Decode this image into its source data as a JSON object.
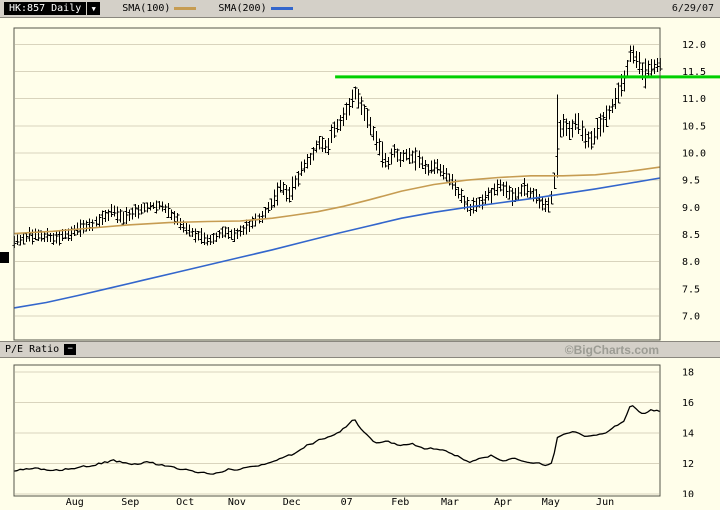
{
  "header": {
    "symbol": "HK:857 Daily",
    "dropdown_icon": "▼",
    "legend": [
      {
        "label": "SMA(100)",
        "color": "#c69c52"
      },
      {
        "label": "SMA(200)",
        "color": "#3366cc"
      }
    ],
    "date": "6/29/07"
  },
  "pe_bar": {
    "label": "P/E Ratio",
    "collapse_icon": "−",
    "watermark": "©BigCharts.com"
  },
  "colors": {
    "toolbar_bg": "#d4d0c8",
    "chart_bg": "#fffeea",
    "grid": "#d9d4bd",
    "border": "#55554a",
    "candle": "#000000",
    "sma100": "#c69c52",
    "sma200": "#3366cc",
    "signal": "#00d000",
    "axis_text": "#000000",
    "watermark": "#9c9c94"
  },
  "chart_data": [
    {
      "type": "ohlc",
      "title": "HK:857 Daily price with SMA(100), SMA(200) and horizontal signal line",
      "ylim": [
        7.0,
        12.0
      ],
      "yticks": [
        "12.0",
        "11.5",
        "11.0",
        "10.5",
        "10.0",
        "9.5",
        "9.0",
        "8.5",
        "8.0",
        "7.5",
        "7.0"
      ],
      "x_axis_months": [
        "Aug",
        "Sep",
        "Oct",
        "Nov",
        "Dec",
        "07",
        "Feb",
        "Mar",
        "Apr",
        "May",
        "Jun"
      ],
      "month_t": [
        0.094,
        0.18,
        0.265,
        0.345,
        0.43,
        0.515,
        0.598,
        0.675,
        0.757,
        0.831,
        0.915
      ],
      "legend_position": "top",
      "grid": true,
      "price_anchors": [
        [
          0.0,
          8.25,
          8.5
        ],
        [
          0.03,
          8.38,
          8.62
        ],
        [
          0.06,
          8.3,
          8.58
        ],
        [
          0.094,
          8.42,
          8.68
        ],
        [
          0.12,
          8.55,
          8.82
        ],
        [
          0.155,
          8.82,
          9.05
        ],
        [
          0.17,
          8.65,
          8.92
        ],
        [
          0.18,
          8.75,
          9.0
        ],
        [
          0.205,
          8.9,
          9.12
        ],
        [
          0.225,
          8.95,
          9.15
        ],
        [
          0.25,
          8.65,
          8.95
        ],
        [
          0.265,
          8.48,
          8.75
        ],
        [
          0.285,
          8.35,
          8.6
        ],
        [
          0.305,
          8.25,
          8.5
        ],
        [
          0.325,
          8.45,
          8.68
        ],
        [
          0.34,
          8.35,
          8.58
        ],
        [
          0.355,
          8.45,
          8.7
        ],
        [
          0.37,
          8.6,
          8.85
        ],
        [
          0.385,
          8.75,
          9.0
        ],
        [
          0.4,
          8.95,
          9.22
        ],
        [
          0.413,
          9.25,
          9.58
        ],
        [
          0.425,
          9.05,
          9.35
        ],
        [
          0.432,
          9.25,
          9.55
        ],
        [
          0.445,
          9.55,
          9.85
        ],
        [
          0.458,
          9.75,
          10.05
        ],
        [
          0.472,
          10.05,
          10.38
        ],
        [
          0.483,
          9.95,
          10.25
        ],
        [
          0.495,
          10.25,
          10.6
        ],
        [
          0.508,
          10.45,
          10.8
        ],
        [
          0.518,
          10.65,
          11.0
        ],
        [
          0.527,
          10.95,
          11.28
        ],
        [
          0.537,
          10.7,
          11.05
        ],
        [
          0.548,
          10.4,
          10.78
        ],
        [
          0.558,
          10.1,
          10.5
        ],
        [
          0.568,
          9.85,
          10.22
        ],
        [
          0.578,
          9.62,
          9.95
        ],
        [
          0.588,
          9.9,
          10.22
        ],
        [
          0.598,
          9.78,
          10.05
        ],
        [
          0.612,
          9.85,
          10.12
        ],
        [
          0.627,
          9.7,
          9.98
        ],
        [
          0.641,
          9.55,
          9.85
        ],
        [
          0.655,
          9.62,
          9.9
        ],
        [
          0.675,
          9.35,
          9.65
        ],
        [
          0.69,
          9.05,
          9.38
        ],
        [
          0.705,
          8.8,
          9.12
        ],
        [
          0.72,
          8.95,
          9.25
        ],
        [
          0.737,
          9.1,
          9.4
        ],
        [
          0.75,
          9.28,
          9.55
        ],
        [
          0.76,
          9.15,
          9.45
        ],
        [
          0.775,
          9.05,
          9.35
        ],
        [
          0.788,
          9.2,
          9.5
        ],
        [
          0.802,
          9.1,
          9.4
        ],
        [
          0.815,
          8.95,
          9.25
        ],
        [
          0.825,
          8.85,
          9.15
        ],
        [
          0.833,
          9.05,
          9.4
        ],
        [
          0.837,
          9.3,
          9.7
        ],
        [
          0.845,
          10.2,
          10.6
        ],
        [
          0.85,
          10.3,
          10.7
        ],
        [
          0.861,
          10.2,
          10.6
        ],
        [
          0.872,
          10.4,
          10.8
        ],
        [
          0.882,
          10.1,
          10.5
        ],
        [
          0.892,
          10.0,
          10.4
        ],
        [
          0.903,
          10.25,
          10.65
        ],
        [
          0.915,
          10.4,
          10.8
        ],
        [
          0.93,
          10.8,
          11.2
        ],
        [
          0.944,
          11.1,
          11.5
        ],
        [
          0.955,
          11.7,
          12.1
        ],
        [
          0.965,
          11.5,
          11.9
        ],
        [
          0.975,
          11.25,
          11.65
        ],
        [
          0.986,
          11.4,
          11.78
        ],
        [
          1.0,
          11.45,
          11.8
        ]
      ],
      "spike_bars": [
        {
          "t": 0.841,
          "low": 9.55,
          "high": 11.08
        }
      ],
      "sma100": [
        [
          0.0,
          8.52
        ],
        [
          0.06,
          8.56
        ],
        [
          0.12,
          8.62
        ],
        [
          0.18,
          8.68
        ],
        [
          0.24,
          8.72
        ],
        [
          0.3,
          8.74
        ],
        [
          0.35,
          8.75
        ],
        [
          0.4,
          8.8
        ],
        [
          0.43,
          8.85
        ],
        [
          0.47,
          8.92
        ],
        [
          0.51,
          9.02
        ],
        [
          0.55,
          9.14
        ],
        [
          0.6,
          9.3
        ],
        [
          0.65,
          9.42
        ],
        [
          0.7,
          9.5
        ],
        [
          0.75,
          9.55
        ],
        [
          0.8,
          9.58
        ],
        [
          0.85,
          9.58
        ],
        [
          0.9,
          9.6
        ],
        [
          0.95,
          9.66
        ],
        [
          1.0,
          9.74
        ]
      ],
      "sma200": [
        [
          0.0,
          7.15
        ],
        [
          0.05,
          7.25
        ],
        [
          0.1,
          7.38
        ],
        [
          0.15,
          7.52
        ],
        [
          0.2,
          7.66
        ],
        [
          0.25,
          7.8
        ],
        [
          0.3,
          7.94
        ],
        [
          0.35,
          8.08
        ],
        [
          0.4,
          8.22
        ],
        [
          0.45,
          8.37
        ],
        [
          0.5,
          8.52
        ],
        [
          0.55,
          8.66
        ],
        [
          0.6,
          8.8
        ],
        [
          0.65,
          8.91
        ],
        [
          0.7,
          9.0
        ],
        [
          0.75,
          9.08
        ],
        [
          0.8,
          9.16
        ],
        [
          0.85,
          9.25
        ],
        [
          0.9,
          9.34
        ],
        [
          0.95,
          9.44
        ],
        [
          1.0,
          9.54
        ]
      ],
      "resistance_line": {
        "value": 11.4,
        "start_t": 0.497,
        "color": "#00d000"
      }
    },
    {
      "type": "line",
      "title": "P/E Ratio",
      "ylim": [
        10,
        18
      ],
      "yticks": [
        "18",
        "16",
        "14",
        "12",
        "10"
      ],
      "grid": true,
      "points": [
        [
          0.0,
          11.5
        ],
        [
          0.03,
          11.7
        ],
        [
          0.055,
          11.5
        ],
        [
          0.094,
          11.7
        ],
        [
          0.125,
          11.9
        ],
        [
          0.155,
          12.2
        ],
        [
          0.18,
          11.9
        ],
        [
          0.205,
          12.1
        ],
        [
          0.23,
          11.9
        ],
        [
          0.25,
          11.7
        ],
        [
          0.265,
          11.6
        ],
        [
          0.29,
          11.4
        ],
        [
          0.31,
          11.3
        ],
        [
          0.33,
          11.6
        ],
        [
          0.345,
          11.6
        ],
        [
          0.37,
          11.8
        ],
        [
          0.395,
          12.0
        ],
        [
          0.413,
          12.4
        ],
        [
          0.43,
          12.6
        ],
        [
          0.45,
          13.1
        ],
        [
          0.47,
          13.5
        ],
        [
          0.49,
          13.8
        ],
        [
          0.505,
          14.1
        ],
        [
          0.52,
          14.6
        ],
        [
          0.527,
          15.0
        ],
        [
          0.535,
          14.3
        ],
        [
          0.548,
          13.8
        ],
        [
          0.56,
          13.3
        ],
        [
          0.575,
          13.5
        ],
        [
          0.598,
          13.2
        ],
        [
          0.615,
          13.3
        ],
        [
          0.632,
          13.0
        ],
        [
          0.65,
          13.0
        ],
        [
          0.675,
          12.7
        ],
        [
          0.69,
          12.4
        ],
        [
          0.705,
          12.1
        ],
        [
          0.722,
          12.4
        ],
        [
          0.74,
          12.5
        ],
        [
          0.757,
          12.2
        ],
        [
          0.775,
          12.3
        ],
        [
          0.79,
          12.1
        ],
        [
          0.81,
          12.0
        ],
        [
          0.825,
          11.9
        ],
        [
          0.833,
          12.0
        ],
        [
          0.841,
          13.7
        ],
        [
          0.855,
          14.0
        ],
        [
          0.87,
          14.1
        ],
        [
          0.885,
          13.7
        ],
        [
          0.9,
          13.9
        ],
        [
          0.915,
          14.0
        ],
        [
          0.93,
          14.4
        ],
        [
          0.944,
          14.8
        ],
        [
          0.955,
          15.9
        ],
        [
          0.965,
          15.5
        ],
        [
          0.975,
          15.2
        ],
        [
          0.986,
          15.5
        ],
        [
          1.0,
          15.4
        ]
      ]
    }
  ]
}
